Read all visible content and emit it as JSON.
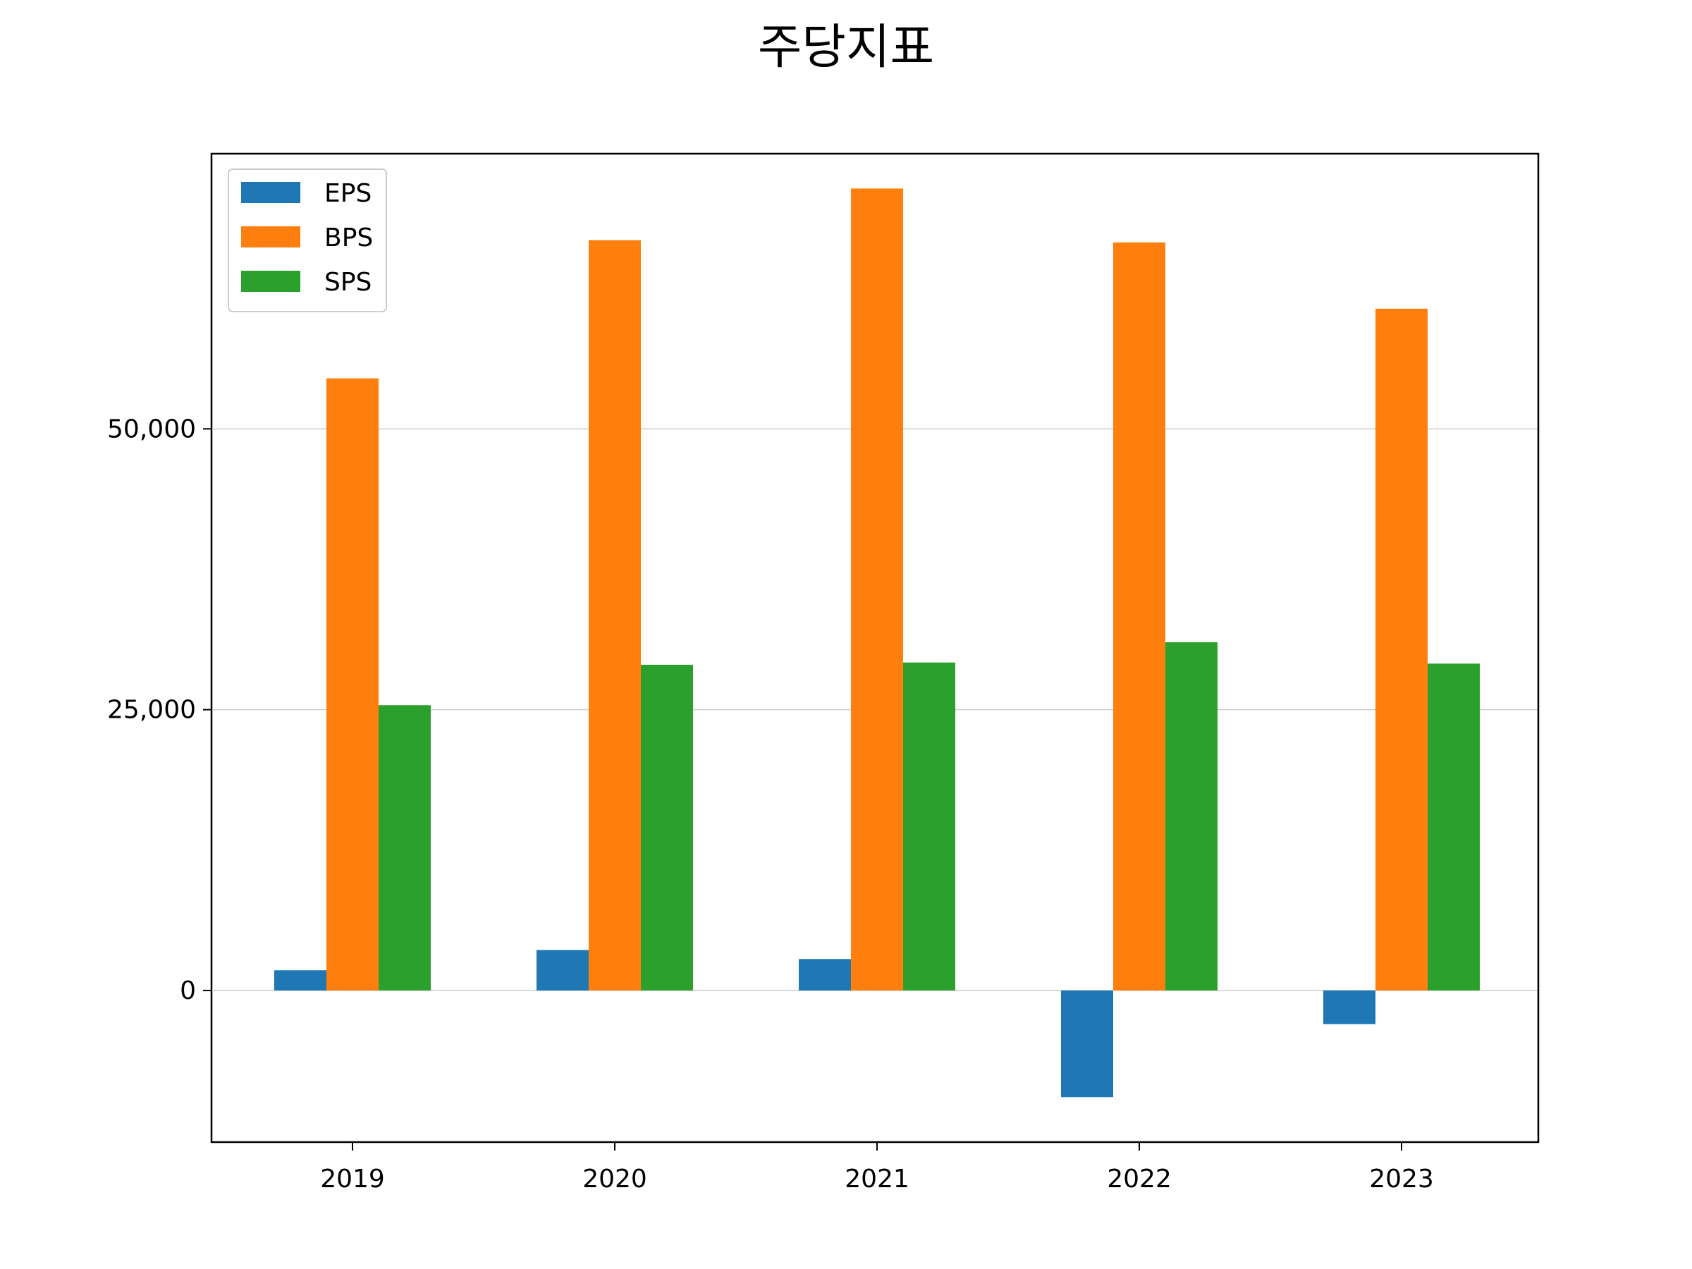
{
  "chart_data": {
    "type": "bar",
    "title": "주당지표",
    "xlabel": "",
    "ylabel": "",
    "categories": [
      "2019",
      "2020",
      "2021",
      "2022",
      "2023"
    ],
    "series": [
      {
        "name": "EPS",
        "color": "#1f77b4",
        "values": [
          1800,
          3600,
          2800,
          -9500,
          -3000
        ]
      },
      {
        "name": "BPS",
        "color": "#ff7f0e",
        "values": [
          54500,
          66800,
          71400,
          66600,
          60700
        ]
      },
      {
        "name": "SPS",
        "color": "#2ca02c",
        "values": [
          25400,
          29000,
          29200,
          31000,
          29100
        ]
      }
    ],
    "yticks": [
      0,
      25000,
      50000
    ],
    "ytick_labels": [
      "0",
      "25,000",
      "50,000"
    ],
    "ylim": [
      -13500,
      74500
    ],
    "grid": "horizontal",
    "legend_position": "upper-left"
  }
}
